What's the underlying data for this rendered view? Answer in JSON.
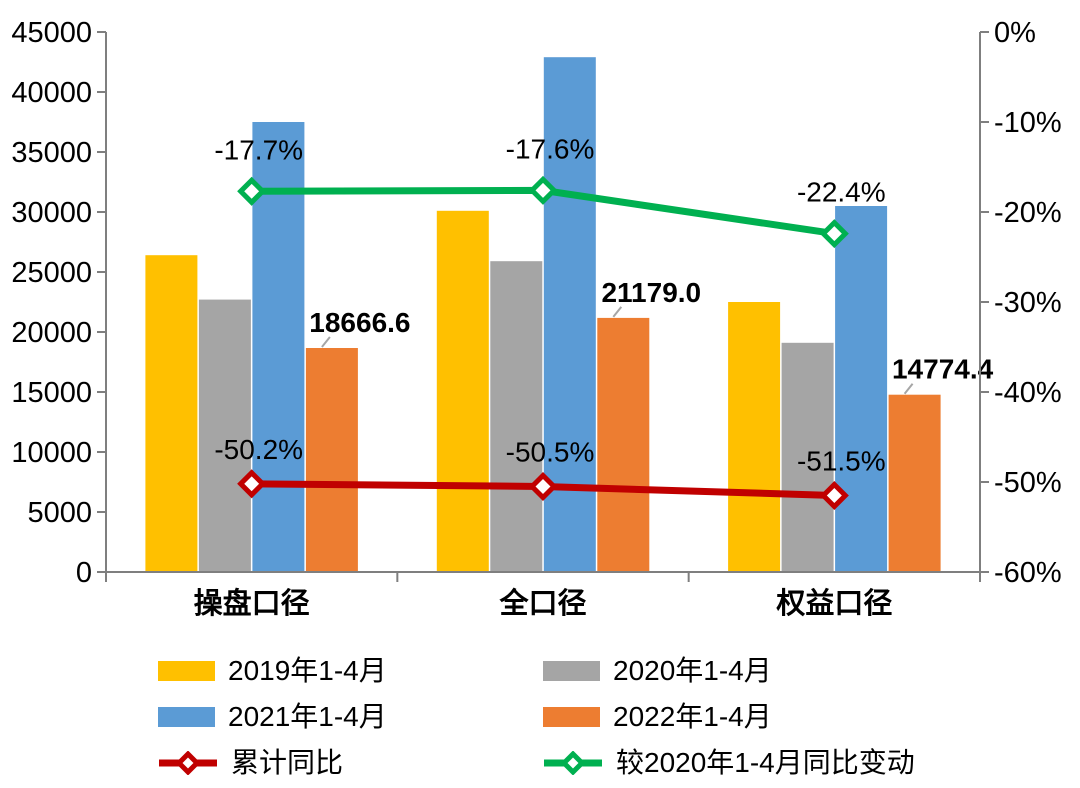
{
  "chart_data": {
    "type": "bar",
    "subtype": "grouped bars with two overlay lines (combo chart, dual axis)",
    "title": "",
    "xlabel": "",
    "ylabel": "",
    "grid": false,
    "background": "#FFFFFF",
    "categories": [
      "操盘口径",
      "全口径",
      "权益口径"
    ],
    "bar_series": [
      {
        "name": "2019年1-4月",
        "color": "#FFC000",
        "values": [
          26400,
          30100,
          22500
        ]
      },
      {
        "name": "2020年1-4月",
        "color": "#A5A5A5",
        "values": [
          22700,
          25900,
          19100
        ]
      },
      {
        "name": "2021年1-4月",
        "color": "#5B9BD5",
        "values": [
          37500,
          42900,
          30500
        ]
      },
      {
        "name": "2022年1-4月",
        "color": "#ED7D31",
        "values": [
          18666.6,
          21179.0,
          14774.4
        ],
        "data_labels": [
          "18666.6",
          "21179.0",
          "14774.4"
        ],
        "label_offset": [
          28,
          -16
        ],
        "leader_lines": true
      }
    ],
    "line_series": [
      {
        "name": "累计同比",
        "color": "#C00000",
        "axis": "right",
        "values": [
          -50.2,
          -50.5,
          -51.5
        ],
        "data_labels": [
          "-50.2%",
          "-50.5%",
          "-51.5%"
        ],
        "marker": "diamond",
        "label_offset": [
          7,
          -25
        ]
      },
      {
        "name": "较2020年1-4月同比变动",
        "color": "#00B050",
        "axis": "right",
        "values": [
          -17.7,
          -17.6,
          -22.4
        ],
        "data_labels": [
          "-17.7%",
          "-17.6%",
          "-22.4%"
        ],
        "marker": "diamond",
        "label_offset": [
          7,
          -32
        ]
      }
    ],
    "left_axis": {
      "min": 0,
      "max": 45000,
      "step": 5000,
      "tick_labels": [
        "0",
        "5000",
        "10000",
        "15000",
        "20000",
        "25000",
        "30000",
        "35000",
        "40000",
        "45000"
      ]
    },
    "right_axis": {
      "min": -60,
      "max": 0,
      "step": 10,
      "tick_labels": [
        "0%",
        "-10%",
        "-20%",
        "-30%",
        "-40%",
        "-50%",
        "-60%"
      ]
    },
    "legend_position": "bottom-two-columns",
    "legend_columns": [
      [
        "2019年1-4月",
        "2021年1-4月",
        "累计同比"
      ],
      [
        "2020年1-4月",
        "2022年1-4月",
        "较2020年1-4月同比变动"
      ]
    ]
  },
  "colors": {
    "axis": "#7F7F7F",
    "text": "#000000",
    "leader_line": "#A6A6A6"
  }
}
